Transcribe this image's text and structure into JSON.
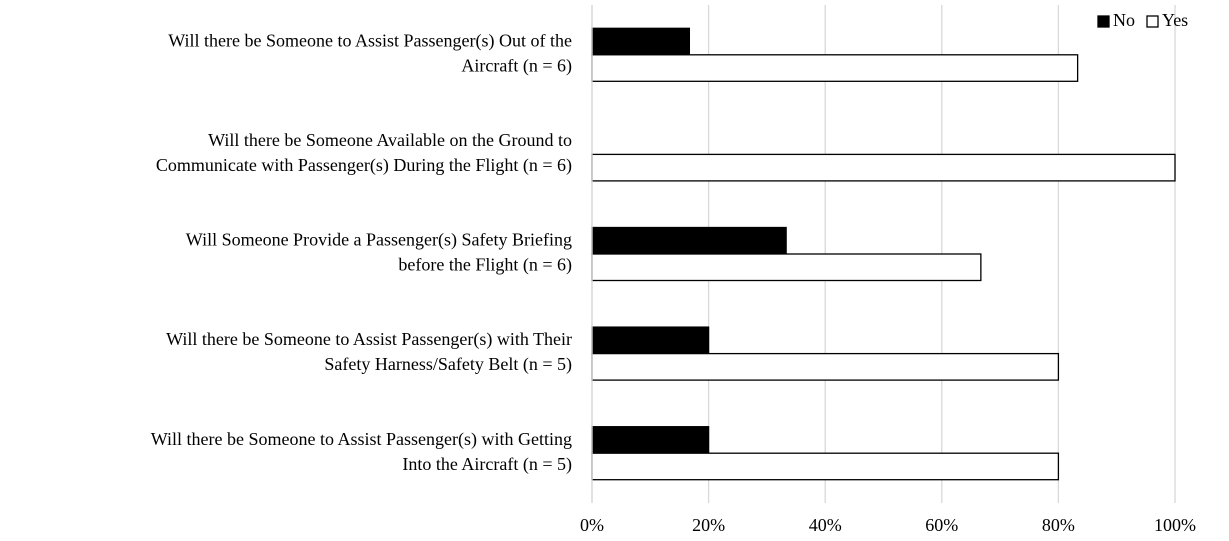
{
  "chart_data": {
    "type": "bar",
    "orientation": "horizontal",
    "categories": [
      [
        "Will there be Someone to Assist Passenger(s) Out of the",
        "Aircraft (n = 6)"
      ],
      [
        "Will there be Someone Available on the Ground to",
        "Communicate with Passenger(s) During the Flight (n = 6)"
      ],
      [
        "Will Someone Provide a Passenger(s) Safety Briefing",
        "before the Flight (n = 6)"
      ],
      [
        "Will there be Someone to Assist Passenger(s) with Their",
        "Safety Harness/Safety Belt (n = 5)"
      ],
      [
        "Will there be Someone to Assist Passenger(s) with Getting",
        "Into the Aircraft (n = 5)"
      ]
    ],
    "series": [
      {
        "name": "No",
        "color": "#000000",
        "values": [
          16.7,
          0,
          33.3,
          20,
          20
        ]
      },
      {
        "name": "Yes",
        "color": "#ffffff",
        "values": [
          83.3,
          100,
          66.7,
          80,
          80
        ]
      }
    ],
    "xlim": [
      0,
      100
    ],
    "xticks": [
      {
        "value": 0,
        "label": "0%"
      },
      {
        "value": 20,
        "label": "20%"
      },
      {
        "value": 40,
        "label": "40%"
      },
      {
        "value": 60,
        "label": "60%"
      },
      {
        "value": 80,
        "label": "80%"
      },
      {
        "value": 100,
        "label": "100%"
      }
    ],
    "grid": true,
    "legend": "top-right"
  }
}
